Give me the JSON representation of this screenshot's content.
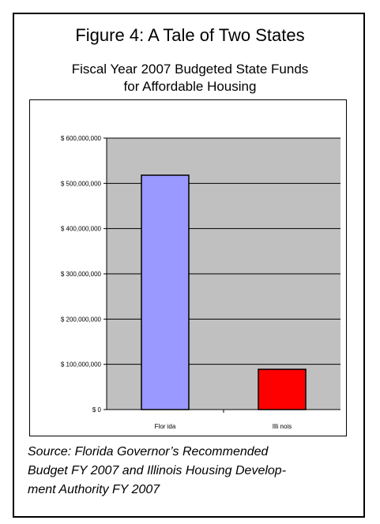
{
  "figure": {
    "title": "Figure 4: A Tale of Two States",
    "subtitle_line1": "Fiscal Year 2007 Budgeted State Funds",
    "subtitle_line2": "for Affordable Housing",
    "source_line1": "Source:  Florida Governor’s Recommended",
    "source_line2": "Budget FY 2007 and Illinois Housing Develop-",
    "source_line3": "ment Authority FY 2007"
  },
  "chart_data": {
    "type": "bar",
    "categories": [
      "Florida",
      "Illinois"
    ],
    "category_labels": [
      "Flor ida",
      "Illi nois"
    ],
    "values": [
      518000000,
      89000000
    ],
    "ylim": [
      0,
      600000000
    ],
    "yticks": [
      0,
      100000000,
      200000000,
      300000000,
      400000000,
      500000000,
      600000000
    ],
    "ytick_labels": [
      "$ 0",
      "$ 100,000,000",
      "$ 200,000,000",
      "$ 300,000,000",
      "$ 400,000,000",
      "$ 500,000,000",
      "$ 600,000,000"
    ],
    "grid": true,
    "colors": [
      "#9999ff",
      "#ff0000"
    ],
    "plot_background": "#c0c0c0",
    "xlabel": "",
    "ylabel": ""
  }
}
